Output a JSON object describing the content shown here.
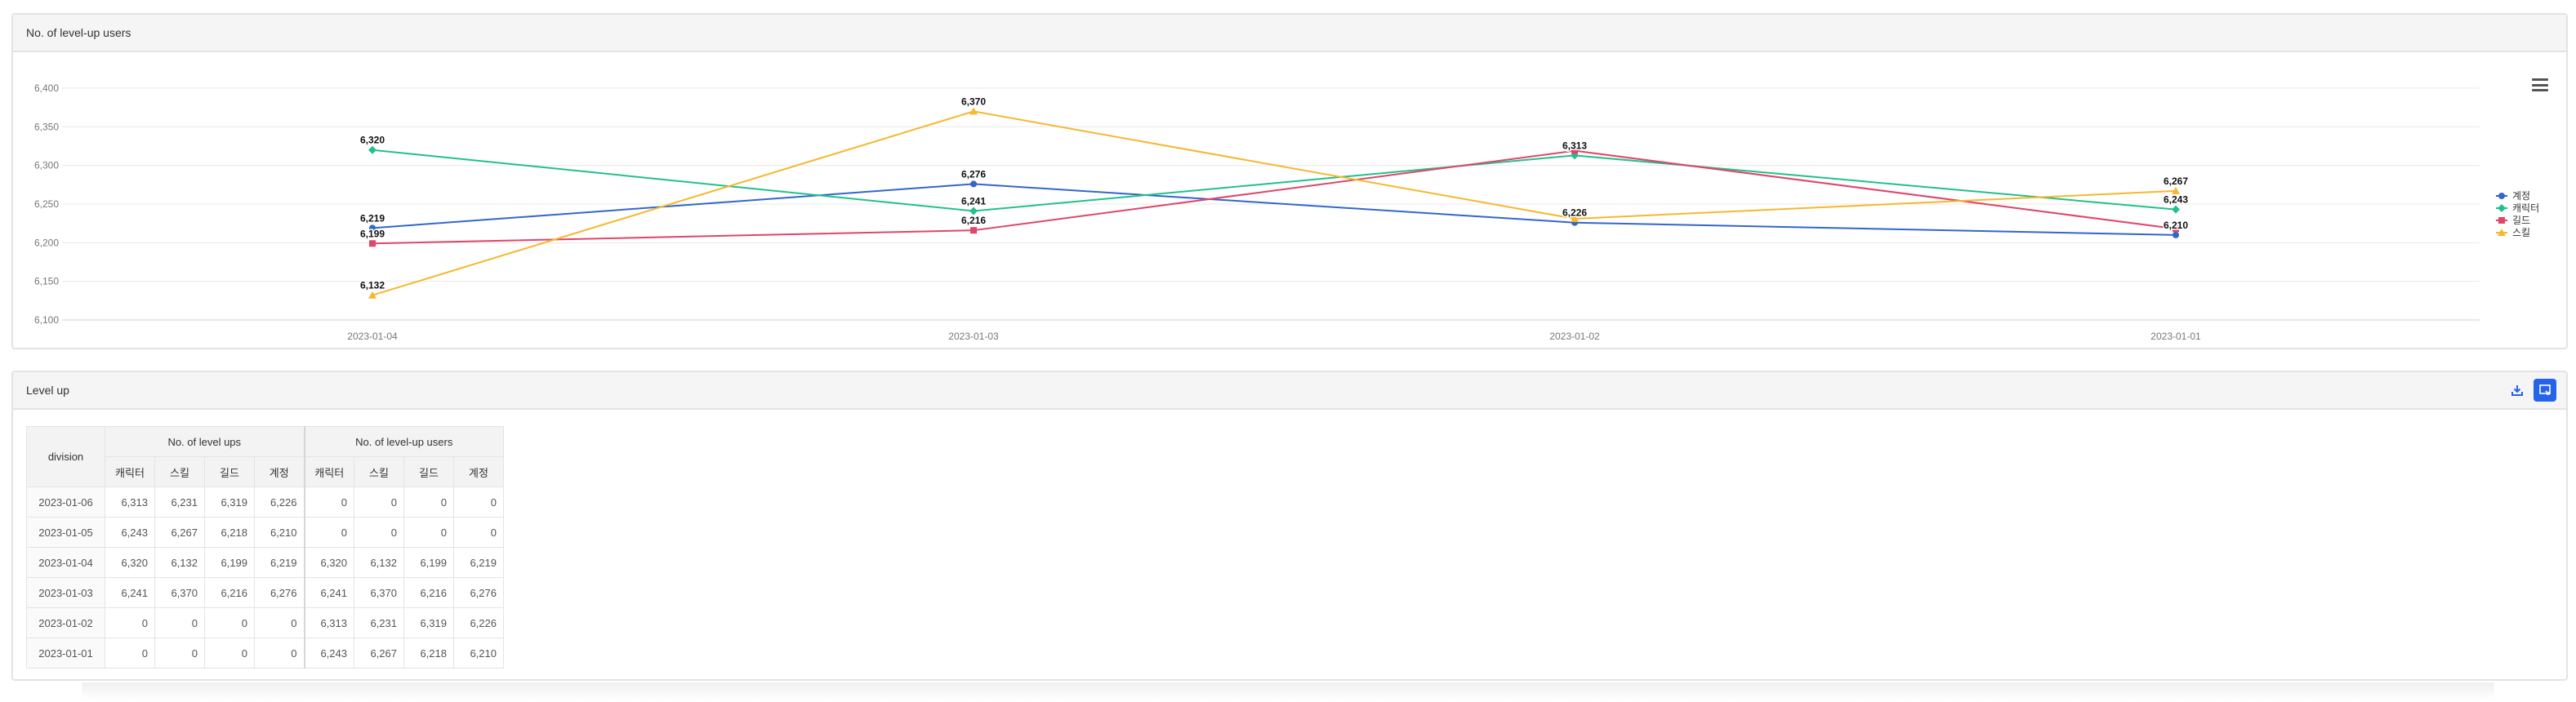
{
  "chart_panel": {
    "title": "No. of level-up users"
  },
  "table_panel": {
    "title": "Level up"
  },
  "chart_data": {
    "type": "line",
    "categories": [
      "2023-01-04",
      "2023-01-03",
      "2023-01-02",
      "2023-01-01"
    ],
    "ylim": [
      6100,
      6400
    ],
    "yticks": [
      6100,
      6150,
      6200,
      6250,
      6300,
      6350,
      6400
    ],
    "legend_position": "right",
    "grid": true,
    "series": [
      {
        "name": "계정",
        "color": "#3366cc",
        "marker": "circle",
        "values": [
          6219,
          6276,
          6226,
          6210
        ]
      },
      {
        "name": "캐릭터",
        "color": "#22c08a",
        "marker": "diamond",
        "values": [
          6320,
          6241,
          6313,
          6243
        ]
      },
      {
        "name": "길드",
        "color": "#e0456a",
        "marker": "square",
        "values": [
          6199,
          6216,
          6319,
          6218
        ]
      },
      {
        "name": "스킬",
        "color": "#f5b82e",
        "marker": "triangle",
        "values": [
          6132,
          6370,
          6231,
          6267
        ]
      }
    ],
    "data_labels": [
      [
        "6,219",
        "6,276",
        "6,226",
        "6,210"
      ],
      [
        "6,320",
        "6,241",
        "6,313",
        "6,243"
      ],
      [
        "6,199",
        "6,216",
        "",
        ""
      ],
      [
        "6,132",
        "6,370",
        "",
        "6,267"
      ]
    ]
  },
  "table": {
    "division_header": "division",
    "groups": [
      "No. of level ups",
      "No. of level-up users"
    ],
    "columns": [
      "캐릭터",
      "스킬",
      "길드",
      "계정",
      "캐릭터",
      "스킬",
      "길드",
      "계정"
    ],
    "rows": [
      {
        "date": "2023-01-06",
        "values": [
          "6,313",
          "6,231",
          "6,319",
          "6,226",
          "0",
          "0",
          "0",
          "0"
        ]
      },
      {
        "date": "2023-01-05",
        "values": [
          "6,243",
          "6,267",
          "6,218",
          "6,210",
          "0",
          "0",
          "0",
          "0"
        ]
      },
      {
        "date": "2023-01-04",
        "values": [
          "6,320",
          "6,132",
          "6,199",
          "6,219",
          "6,320",
          "6,132",
          "6,199",
          "6,219"
        ]
      },
      {
        "date": "2023-01-03",
        "values": [
          "6,241",
          "6,370",
          "6,216",
          "6,276",
          "6,241",
          "6,370",
          "6,216",
          "6,276"
        ]
      },
      {
        "date": "2023-01-02",
        "values": [
          "0",
          "0",
          "0",
          "0",
          "6,313",
          "6,231",
          "6,319",
          "6,226"
        ]
      },
      {
        "date": "2023-01-01",
        "values": [
          "0",
          "0",
          "0",
          "0",
          "6,243",
          "6,267",
          "6,218",
          "6,210"
        ]
      }
    ]
  },
  "icons": {
    "menu": "hamburger-menu-icon",
    "download": "download-icon",
    "expand": "expand-icon"
  }
}
